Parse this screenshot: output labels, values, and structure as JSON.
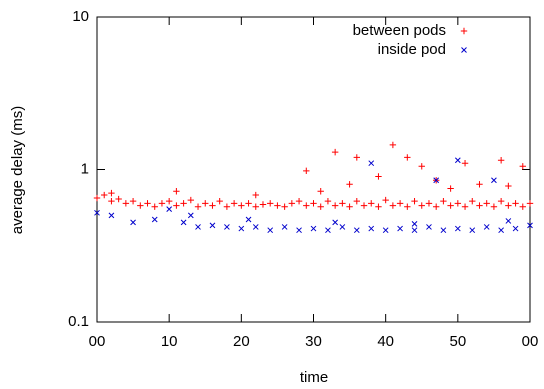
{
  "chart_data": {
    "type": "scatter",
    "xlabel": "time",
    "ylabel": "average delay (ms)",
    "xlim": [
      0,
      60
    ],
    "xticks": [
      {
        "value": 0,
        "label": "00"
      },
      10,
      20,
      30,
      40,
      50,
      {
        "value": 60,
        "label": "00"
      }
    ],
    "ylim": [
      0.1,
      10
    ],
    "yticks": [
      0.1,
      1,
      10
    ],
    "log_y": true,
    "grid": false,
    "legend": "top-right",
    "series": [
      {
        "name": "between pods",
        "color": "#ff0000",
        "marker": "+",
        "x": [
          0,
          1,
          2,
          3,
          4,
          5,
          6,
          7,
          8,
          9,
          10,
          11,
          12,
          13,
          14,
          15,
          16,
          17,
          18,
          19,
          20,
          21,
          22,
          23,
          24,
          25,
          26,
          27,
          28,
          29,
          30,
          31,
          32,
          33,
          34,
          35,
          36,
          37,
          38,
          39,
          40,
          41,
          42,
          43,
          44,
          45,
          46,
          47,
          48,
          49,
          50,
          51,
          52,
          53,
          54,
          55,
          56,
          57,
          58,
          59,
          60,
          29,
          33,
          36,
          41,
          43,
          45,
          51,
          56,
          59,
          35,
          39,
          47,
          53,
          31,
          49,
          57,
          2,
          11,
          22
        ],
        "y": [
          0.65,
          0.68,
          0.62,
          0.64,
          0.6,
          0.62,
          0.58,
          0.6,
          0.57,
          0.6,
          0.62,
          0.58,
          0.6,
          0.63,
          0.57,
          0.6,
          0.58,
          0.62,
          0.57,
          0.6,
          0.58,
          0.6,
          0.57,
          0.59,
          0.6,
          0.58,
          0.57,
          0.6,
          0.62,
          0.58,
          0.6,
          0.57,
          0.62,
          0.58,
          0.6,
          0.57,
          0.62,
          0.58,
          0.6,
          0.57,
          0.63,
          0.58,
          0.6,
          0.57,
          0.62,
          0.58,
          0.6,
          0.57,
          0.62,
          0.58,
          0.6,
          0.57,
          0.62,
          0.58,
          0.6,
          0.57,
          0.62,
          0.58,
          0.6,
          0.57,
          0.6,
          0.98,
          1.3,
          1.2,
          1.45,
          1.2,
          1.05,
          1.1,
          1.15,
          1.05,
          0.8,
          0.9,
          0.85,
          0.8,
          0.72,
          0.75,
          0.78,
          0.7,
          0.72,
          0.68
        ]
      },
      {
        "name": "inside pod",
        "color": "#0000cc",
        "marker": "x",
        "x": [
          0,
          2,
          5,
          8,
          10,
          12,
          14,
          16,
          18,
          20,
          22,
          24,
          26,
          28,
          30,
          32,
          34,
          36,
          38,
          40,
          42,
          44,
          46,
          48,
          50,
          52,
          54,
          56,
          58,
          60,
          38,
          50,
          47,
          55,
          13,
          21,
          33,
          44,
          57
        ],
        "y": [
          0.52,
          0.5,
          0.45,
          0.47,
          0.55,
          0.45,
          0.42,
          0.43,
          0.42,
          0.41,
          0.42,
          0.4,
          0.42,
          0.4,
          0.41,
          0.4,
          0.42,
          0.4,
          0.41,
          0.4,
          0.41,
          0.4,
          0.42,
          0.4,
          0.41,
          0.4,
          0.42,
          0.4,
          0.41,
          0.43,
          1.1,
          1.15,
          0.85,
          0.85,
          0.5,
          0.47,
          0.45,
          0.44,
          0.46
        ]
      }
    ]
  }
}
